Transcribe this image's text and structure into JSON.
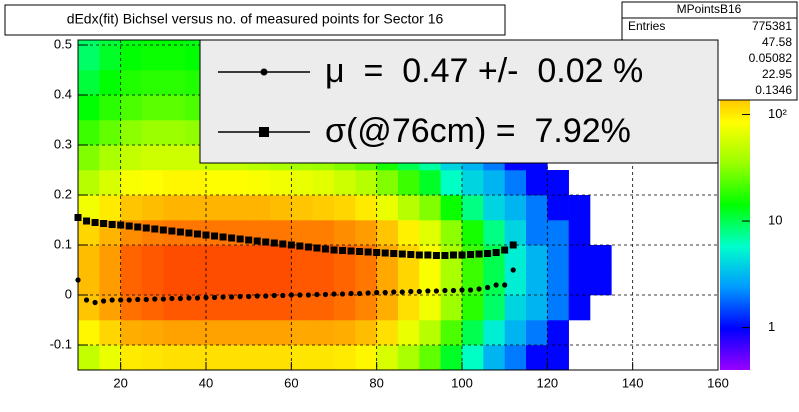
{
  "chart_data": {
    "type": "heatmap",
    "title": "dEdx(fit) Bichsel versus no. of measured points for Sector 16",
    "xlim": [
      10,
      160
    ],
    "xticks": [
      20,
      40,
      60,
      80,
      100,
      120,
      140,
      160
    ],
    "ylim": [
      -0.15,
      0.51
    ],
    "yticks": [
      -0.1,
      0,
      0.1,
      0.2,
      0.3,
      0.4,
      0.5
    ],
    "grid": true,
    "zscale": "log",
    "zlim": [
      0.4,
      500
    ],
    "zticks": [
      1,
      10,
      {
        "value": 100,
        "label": "10²"
      }
    ],
    "palette": [
      "#9900ff",
      "#0000ff",
      "#0099ff",
      "#00ffcc",
      "#00ff00",
      "#99ff00",
      "#ffff00",
      "#ff9900",
      "#ff0000"
    ],
    "xbins": [
      10,
      15,
      20,
      25,
      30,
      35,
      40,
      45,
      50,
      55,
      60,
      65,
      70,
      75,
      80,
      85,
      90,
      95,
      100,
      105,
      110,
      115,
      120,
      125,
      130,
      135
    ],
    "ybins": [
      -0.15,
      -0.1,
      -0.05,
      0,
      0.05,
      0.1,
      0.15,
      0.2,
      0.25,
      0.3,
      0.35,
      0.4,
      0.45,
      0.5,
      0.51
    ],
    "z": [
      [
        50,
        70,
        100,
        105,
        110,
        110,
        110,
        110,
        110,
        110,
        105,
        105,
        100,
        90,
        60,
        40,
        25,
        12,
        6,
        3,
        2,
        1,
        1,
        0,
        0
      ],
      [
        90,
        120,
        170,
        180,
        190,
        190,
        190,
        190,
        190,
        190,
        180,
        180,
        170,
        150,
        110,
        70,
        45,
        22,
        10,
        5,
        3,
        2,
        1,
        0,
        0
      ],
      [
        140,
        190,
        260,
        280,
        300,
        300,
        300,
        300,
        300,
        300,
        280,
        280,
        260,
        230,
        170,
        110,
        75,
        36,
        18,
        9,
        4,
        3,
        2,
        1,
        0
      ],
      [
        150,
        200,
        280,
        300,
        320,
        320,
        320,
        320,
        320,
        320,
        300,
        300,
        280,
        250,
        180,
        120,
        80,
        40,
        20,
        10,
        5,
        3,
        2,
        1,
        1
      ],
      [
        150,
        200,
        280,
        300,
        320,
        320,
        320,
        320,
        320,
        320,
        300,
        300,
        280,
        250,
        180,
        120,
        80,
        40,
        20,
        10,
        5,
        3,
        2,
        1,
        1
      ],
      [
        120,
        160,
        220,
        240,
        250,
        250,
        250,
        250,
        250,
        250,
        240,
        240,
        220,
        200,
        140,
        95,
        64,
        32,
        16,
        8,
        4,
        2,
        2,
        1,
        0
      ],
      [
        75,
        100,
        140,
        150,
        160,
        160,
        160,
        160,
        160,
        150,
        140,
        130,
        120,
        100,
        70,
        45,
        30,
        15,
        8,
        4,
        3,
        2,
        1,
        1,
        0
      ],
      [
        45,
        60,
        80,
        85,
        90,
        90,
        85,
        85,
        80,
        75,
        70,
        65,
        55,
        45,
        30,
        20,
        12,
        6,
        4,
        3,
        2,
        1,
        1,
        0,
        0
      ],
      [
        30,
        40,
        50,
        55,
        55,
        55,
        50,
        50,
        45,
        40,
        38,
        35,
        30,
        24,
        16,
        10,
        7,
        4,
        3,
        2,
        1,
        1,
        0,
        0,
        0
      ],
      [
        20,
        25,
        32,
        35,
        35,
        33,
        30,
        30,
        28,
        25,
        22,
        20,
        17,
        14,
        9,
        6,
        4,
        3,
        2,
        1,
        1,
        1,
        0,
        0,
        0
      ],
      [
        14,
        18,
        22,
        24,
        24,
        22,
        20,
        20,
        18,
        16,
        14,
        13,
        11,
        9,
        6,
        4,
        3,
        2,
        1,
        1,
        1,
        0,
        0,
        0,
        0
      ],
      [
        11,
        14,
        17,
        18,
        18,
        17,
        15,
        14,
        13,
        12,
        11,
        10,
        8,
        7,
        5,
        3,
        2,
        2,
        1,
        1,
        0,
        0,
        0,
        0,
        0
      ],
      [
        9,
        12,
        14,
        15,
        15,
        14,
        13,
        12,
        11,
        10,
        9,
        8,
        7,
        6,
        4,
        3,
        2,
        1,
        1,
        1,
        0,
        0,
        0,
        0,
        0
      ],
      [
        9,
        11,
        13,
        14,
        14,
        13,
        12,
        11,
        10,
        9,
        8,
        7,
        6,
        5,
        4,
        3,
        2,
        1,
        1,
        1,
        0,
        0,
        0,
        0,
        0
      ]
    ],
    "x": [
      10,
      12,
      14,
      16,
      18,
      20,
      22,
      24,
      26,
      28,
      30,
      32,
      34,
      36,
      38,
      40,
      42,
      44,
      46,
      48,
      50,
      52,
      54,
      56,
      58,
      60,
      62,
      64,
      66,
      68,
      70,
      72,
      74,
      76,
      78,
      80,
      82,
      84,
      86,
      88,
      90,
      92,
      94,
      96,
      98,
      100,
      102,
      104,
      106,
      108,
      110,
      112
    ],
    "series": [
      {
        "name": "μ  =  0.47 +/-  0.02 %",
        "color": "#000000",
        "marker": "circle",
        "values": [
          0.03,
          -0.01,
          -0.015,
          -0.012,
          -0.01,
          -0.01,
          -0.01,
          -0.009,
          -0.009,
          -0.008,
          -0.008,
          -0.007,
          -0.007,
          -0.006,
          -0.006,
          -0.005,
          -0.005,
          -0.004,
          -0.004,
          -0.003,
          -0.003,
          -0.002,
          -0.002,
          -0.001,
          -0.001,
          0,
          0,
          0,
          0.001,
          0.001,
          0.002,
          0.002,
          0.003,
          0.003,
          0.004,
          0.005,
          0.005,
          0.006,
          0.006,
          0.007,
          0.007,
          0.008,
          0.008,
          0.009,
          0.009,
          0.01,
          0.01,
          0.012,
          0.015,
          0.02,
          0.02,
          0.05
        ]
      },
      {
        "name": "σ(@76cm) =  7.92%",
        "color": "#000000",
        "marker": "square",
        "values": [
          0.155,
          0.148,
          0.145,
          0.143,
          0.141,
          0.14,
          0.138,
          0.136,
          0.134,
          0.132,
          0.13,
          0.128,
          0.126,
          0.124,
          0.122,
          0.12,
          0.118,
          0.116,
          0.114,
          0.112,
          0.11,
          0.108,
          0.106,
          0.104,
          0.102,
          0.1,
          0.098,
          0.096,
          0.094,
          0.092,
          0.09,
          0.089,
          0.088,
          0.087,
          0.086,
          0.085,
          0.084,
          0.083,
          0.082,
          0.081,
          0.08,
          0.08,
          0.079,
          0.079,
          0.08,
          0.08,
          0.081,
          0.082,
          0.083,
          0.085,
          0.09,
          0.1
        ]
      }
    ],
    "stats": {
      "title": "MPointsB16",
      "label": "Entries",
      "entries": 775381,
      "values": [
        47.58,
        0.05082,
        22.95,
        0.1346
      ]
    }
  }
}
